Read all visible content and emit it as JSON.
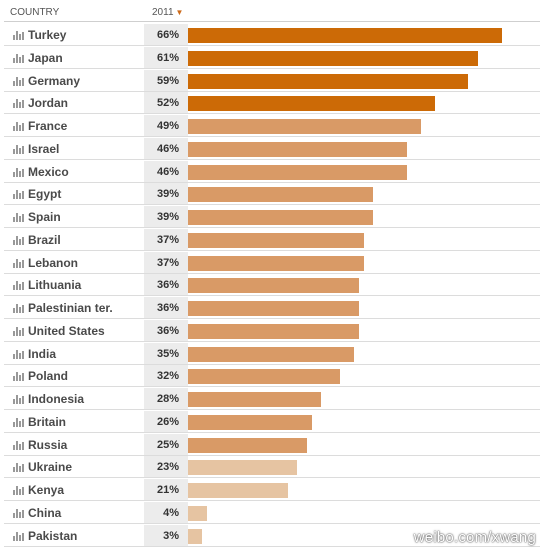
{
  "header": {
    "country_label": "COUNTRY",
    "year_label": "2011",
    "sort_icon": "chevron-down-icon"
  },
  "watermark": "weibo.com/xwang",
  "colors": {
    "high": "#cc6a06",
    "mid": "#d99a66",
    "low": "#e6c4a2"
  },
  "chart_data": {
    "type": "bar",
    "orientation": "horizontal",
    "series": [
      {
        "name": "2011",
        "unit": "%"
      }
    ],
    "categories": [
      "Turkey",
      "Japan",
      "Germany",
      "Jordan",
      "France",
      "Israel",
      "Mexico",
      "Egypt",
      "Spain",
      "Brazil",
      "Lebanon",
      "Lithuania",
      "Palestinian ter.",
      "United States",
      "India",
      "Poland",
      "Indonesia",
      "Britain",
      "Russia",
      "Ukraine",
      "Kenya",
      "China",
      "Pakistan"
    ],
    "values": [
      66,
      61,
      59,
      52,
      49,
      46,
      46,
      39,
      39,
      37,
      37,
      36,
      36,
      36,
      35,
      32,
      28,
      26,
      25,
      23,
      21,
      4,
      3
    ],
    "value_labels": [
      "66%",
      "61%",
      "59%",
      "52%",
      "49%",
      "46%",
      "46%",
      "39%",
      "39%",
      "37%",
      "37%",
      "36%",
      "36%",
      "36%",
      "35%",
      "32%",
      "28%",
      "26%",
      "25%",
      "23%",
      "21%",
      "4%",
      "3%"
    ],
    "color_levels": [
      "high",
      "high",
      "high",
      "high",
      "mid",
      "mid",
      "mid",
      "mid",
      "mid",
      "mid",
      "mid",
      "mid",
      "mid",
      "mid",
      "mid",
      "mid",
      "mid",
      "mid",
      "mid",
      "low",
      "low",
      "low",
      "low"
    ],
    "xlim": [
      0,
      100
    ]
  }
}
